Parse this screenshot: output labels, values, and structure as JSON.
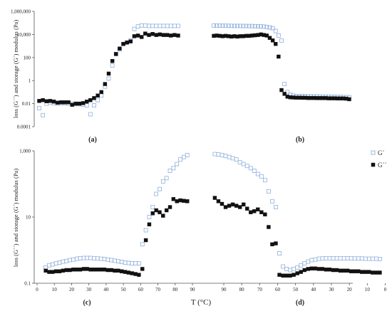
{
  "chart_data": [
    {
      "type": "scatter",
      "yscale": "log",
      "ylim": [
        0.0001,
        1000000
      ],
      "yticks": [
        "0.0001",
        "0.01",
        "1",
        "100",
        "10,000",
        "1,000,000"
      ],
      "ytick_values": [
        0.0001,
        0.01,
        1,
        100,
        10000,
        1000000
      ],
      "ylabel": "loss (G´´) and storage (G´) modulus (Pa)",
      "panels": [
        {
          "label": "(a)",
          "x": [
            5,
            7,
            9,
            11,
            13,
            15,
            17,
            19,
            21,
            23,
            25,
            27,
            29,
            31,
            33,
            35,
            37,
            39,
            41,
            43,
            45,
            47,
            49,
            51,
            53,
            55,
            57,
            59,
            61,
            63,
            65,
            67,
            69,
            71,
            73,
            75,
            77,
            79,
            81
          ],
          "series": [
            {
              "marker": "open-square",
              "values": [
                0.004,
                0.001,
                0.01,
                0.012,
                0.011,
                0.01,
                0.011,
                0.011,
                0.01,
                0.01,
                0.009,
                0.009,
                0.008,
                0.007,
                0.0012,
                0.007,
                0.02,
                0.05,
                0.3,
                1.5,
                20,
                200,
                500,
                1500,
                2000,
                3000,
                30000,
                50000,
                60000,
                60000,
                55000,
                55000,
                55000,
                55000,
                55000,
                55000,
                55000,
                55000,
                55000
              ]
            },
            {
              "marker": "filled-square",
              "values": [
                0.017,
                0.02,
                0.016,
                0.017,
                0.015,
                0.012,
                0.013,
                0.013,
                0.013,
                0.008,
                0.01,
                0.01,
                0.011,
                0.015,
                0.02,
                0.03,
                0.05,
                0.1,
                0.5,
                4,
                50,
                200,
                600,
                1500,
                2000,
                2500,
                7000,
                8000,
                6000,
                12000,
                9000,
                11000,
                9000,
                10000,
                9000,
                9000,
                8000,
                9000,
                8000
              ]
            }
          ]
        },
        {
          "label": "(b)",
          "x": [
            95,
            93,
            91,
            89,
            87,
            85,
            83,
            81,
            79,
            77,
            75,
            73,
            71,
            69,
            67,
            65,
            63,
            61,
            59,
            57,
            55,
            53,
            51,
            49,
            47,
            45,
            43,
            41,
            39,
            37,
            35,
            33,
            31,
            29,
            27,
            25,
            23,
            21,
            19,
            17,
            15,
            13,
            11,
            9,
            7,
            5,
            3
          ],
          "series": [
            {
              "marker": "open-square",
              "values": [
                60000,
                58000,
                58000,
                57000,
                57000,
                56000,
                56000,
                55000,
                55000,
                55000,
                54000,
                54000,
                53000,
                53000,
                52000,
                51000,
                50000,
                48000,
                45000,
                40000,
                35000,
                20000,
                8000,
                3000,
                0.5,
                0.1,
                0.06,
                0.05,
                0.045,
                0.045,
                0.045,
                0.044,
                0.043,
                0.043,
                0.042,
                0.042,
                0.041,
                0.04,
                0.04,
                0.04,
                0.039,
                0.039,
                0.038,
                0.038,
                0.037,
                0.037,
                0.036
              ]
            },
            {
              "marker": "filled-square",
              "values": [
                7500,
                8000,
                7500,
                7000,
                7500,
                7000,
                6500,
                7000,
                6500,
                7000,
                7000,
                7500,
                7500,
                8000,
                8500,
                9000,
                10000,
                9000,
                8000,
                5000,
                3000,
                1500,
                120,
                0.15,
                0.07,
                0.04,
                0.035,
                0.034,
                0.033,
                0.033,
                0.032,
                0.032,
                0.031,
                0.031,
                0.031,
                0.03,
                0.03,
                0.03,
                0.03,
                0.029,
                0.029,
                0.029,
                0.028,
                0.028,
                0.028,
                0.027,
                0.024
              ]
            }
          ]
        }
      ]
    },
    {
      "type": "scatter",
      "yscale": "log",
      "ylim": [
        0.1,
        1000
      ],
      "yticks": [
        "0.1",
        "10",
        "1,000"
      ],
      "ytick_values": [
        0.1,
        10,
        1000
      ],
      "ylabel": "loss (G´´) and storage (G´) modulus (Pa)",
      "xlabel": "T (°C)",
      "xticks": [
        "0",
        "10",
        "20",
        "30",
        "40",
        "50",
        "60",
        "70",
        "80",
        "90",
        "90",
        "80",
        "70",
        "60",
        "50",
        "40",
        "30",
        "20",
        "10",
        "0"
      ],
      "legend": [
        "G´",
        "G´´"
      ],
      "panels": [
        {
          "label": "(c)",
          "x": [
            5,
            7,
            9,
            11,
            13,
            15,
            17,
            19,
            21,
            23,
            25,
            27,
            29,
            31,
            33,
            35,
            37,
            39,
            41,
            43,
            45,
            47,
            49,
            51,
            53,
            55,
            57,
            59,
            61,
            63,
            65,
            67,
            69,
            71,
            73,
            75,
            77,
            79,
            81,
            83,
            85,
            87
          ],
          "series": [
            {
              "name": "G´",
              "marker": "open-square",
              "values": [
                0.3,
                0.35,
                0.37,
                0.4,
                0.42,
                0.45,
                0.47,
                0.5,
                0.52,
                0.55,
                0.57,
                0.58,
                0.58,
                0.58,
                0.57,
                0.56,
                0.55,
                0.54,
                0.52,
                0.5,
                0.48,
                0.46,
                0.44,
                0.42,
                0.41,
                0.4,
                0.4,
                0.4,
                1.5,
                4,
                10,
                20,
                50,
                70,
                120,
                150,
                250,
                300,
                400,
                550,
                650,
                750
              ]
            },
            {
              "name": "G´´",
              "marker": "filled-square",
              "values": [
                0.24,
                0.22,
                0.22,
                0.23,
                0.23,
                0.24,
                0.25,
                0.25,
                0.26,
                0.26,
                0.26,
                0.27,
                0.27,
                0.26,
                0.26,
                0.26,
                0.26,
                0.26,
                0.25,
                0.25,
                0.24,
                0.24,
                0.23,
                0.22,
                0.21,
                0.2,
                0.19,
                0.18,
                0.27,
                2,
                6,
                13,
                16,
                14,
                11,
                16,
                20,
                35,
                30,
                32,
                31,
                30
              ]
            }
          ]
        },
        {
          "label": "(d)",
          "x": [
            95,
            93,
            91,
            89,
            87,
            85,
            83,
            81,
            79,
            77,
            75,
            73,
            71,
            69,
            67,
            65,
            63,
            61,
            59,
            57,
            55,
            53,
            51,
            49,
            47,
            45,
            43,
            41,
            39,
            37,
            35,
            33,
            31,
            29,
            27,
            25,
            23,
            21,
            19,
            17,
            15,
            13,
            11,
            9,
            7,
            5,
            3
          ],
          "series": [
            {
              "name": "G´",
              "marker": "open-square",
              "values": [
                800,
                780,
                750,
                700,
                650,
                600,
                550,
                450,
                400,
                350,
                300,
                250,
                200,
                170,
                130,
                60,
                30,
                20,
                0.8,
                0.32,
                0.27,
                0.25,
                0.27,
                0.3,
                0.35,
                0.4,
                0.45,
                0.5,
                0.52,
                0.55,
                0.56,
                0.57,
                0.57,
                0.57,
                0.57,
                0.57,
                0.57,
                0.57,
                0.57,
                0.56,
                0.56,
                0.56,
                0.55,
                0.55,
                0.55,
                0.55,
                0.54
              ]
            },
            {
              "name": "G´´",
              "marker": "filled-square",
              "values": [
                38,
                30,
                25,
                20,
                22,
                24,
                22,
                20,
                24,
                18,
                14,
                15,
                17,
                14,
                12,
                5,
                1.5,
                1.6,
                0.18,
                0.17,
                0.17,
                0.17,
                0.18,
                0.2,
                0.22,
                0.25,
                0.27,
                0.28,
                0.28,
                0.27,
                0.27,
                0.26,
                0.26,
                0.25,
                0.25,
                0.24,
                0.24,
                0.24,
                0.23,
                0.23,
                0.23,
                0.22,
                0.22,
                0.22,
                0.21,
                0.21,
                0.21
              ]
            }
          ]
        }
      ]
    }
  ]
}
